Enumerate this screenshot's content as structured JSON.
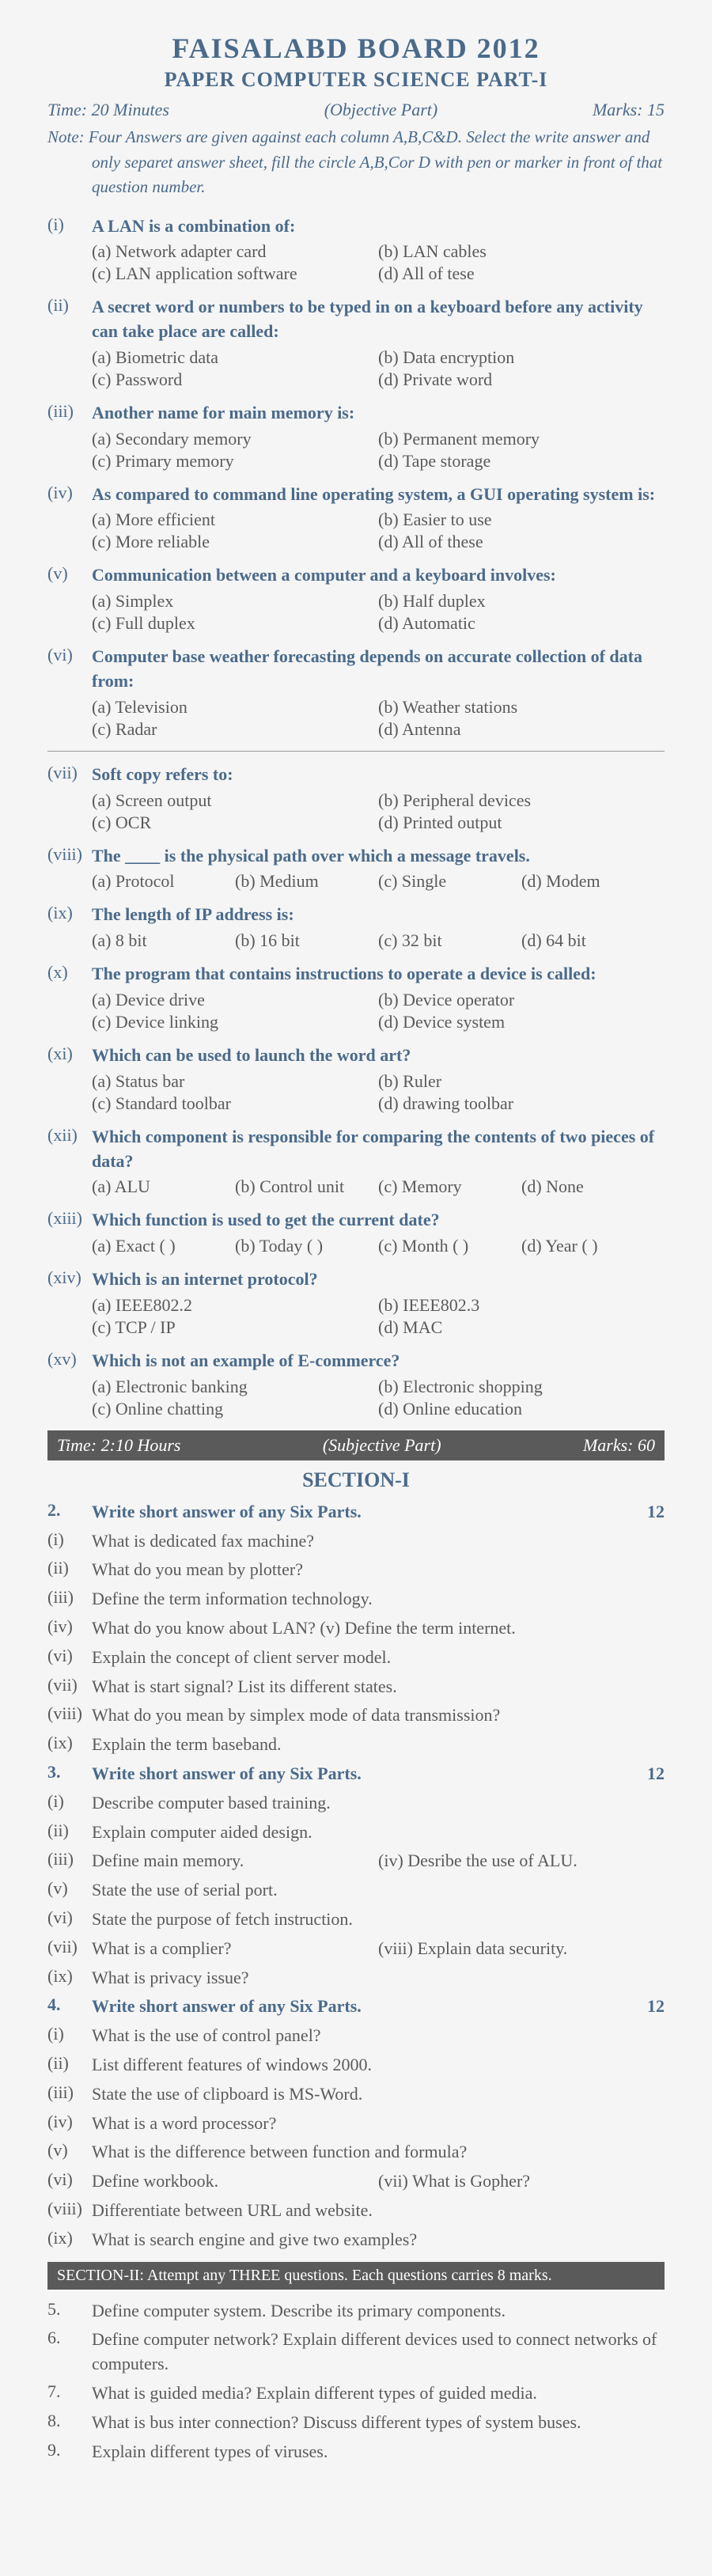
{
  "header": {
    "board": "FAISALABD BOARD 2012",
    "paper": "PAPER COMPUTER SCIENCE PART-I"
  },
  "objective": {
    "time": "Time: 20 Minutes",
    "part": "(Objective Part)",
    "marks": "Marks: 15",
    "note": "Note: Four Answers are given against each column A,B,C&D. Select the write answer and only separet answer sheet, fill the circle A,B,Cor D with pen or marker in front of that question number."
  },
  "mcq": [
    {
      "n": "(i)",
      "q": "A LAN is a combination of:",
      "o": [
        "(a)   Network adapter card",
        "(b)   LAN cables",
        "(c)   LAN application software",
        "(d)   All of tese"
      ],
      "cols": 2
    },
    {
      "n": "(ii)",
      "q": "A secret word or numbers to be typed in on a keyboard before any activity can take place are called:",
      "o": [
        "(a)   Biometric data",
        "(b)   Data encryption",
        "(c)   Password",
        "(d)   Private word"
      ],
      "cols": 2
    },
    {
      "n": "(iii)",
      "q": "Another name for main memory is:",
      "o": [
        "(a)   Secondary memory",
        "(b)   Permanent memory",
        "(c)   Primary memory",
        "(d)   Tape storage"
      ],
      "cols": 2
    },
    {
      "n": "(iv)",
      "q": "As compared to command line operating system, a GUI operating system is:",
      "o": [
        "(a)   More efficient",
        "(b)   Easier to use",
        "(c)   More reliable",
        "(d)   All of these"
      ],
      "cols": 2
    },
    {
      "n": "(v)",
      "q": "Communication between a computer and a keyboard involves:",
      "o": [
        "(a)   Simplex",
        "(b)   Half duplex",
        "(c)   Full duplex",
        "(d)   Automatic"
      ],
      "cols": 2
    },
    {
      "n": "(vi)",
      "q": "Computer base weather forecasting depends on accurate collection of data from:",
      "o": [
        "(a)   Television",
        "(b)   Weather stations",
        "(c)   Radar",
        "(d)   Antenna"
      ],
      "cols": 2,
      "hr": true
    },
    {
      "n": "(vii)",
      "q": "Soft copy refers to:",
      "o": [
        "(a)   Screen output",
        "(b)   Peripheral devices",
        "(c)   OCR",
        "(d)   Printed output"
      ],
      "cols": 2
    },
    {
      "n": "(viii)",
      "q": "The ____ is the physical path over which a message travels.",
      "o": [
        "(a)   Protocol",
        "(b)   Medium",
        "(c)   Single",
        "(d)   Modem"
      ],
      "cols": 4
    },
    {
      "n": "(ix)",
      "q": "The length of IP address is:",
      "o": [
        "(a)   8 bit",
        "(b)   16 bit",
        "(c)   32 bit",
        "(d)   64 bit"
      ],
      "cols": 4
    },
    {
      "n": "(x)",
      "q": "The program that contains instructions to operate a device is called:",
      "o": [
        "(a)   Device drive",
        "(b)   Device operator",
        "(c)   Device linking",
        "(d)   Device system"
      ],
      "cols": 2
    },
    {
      "n": "(xi)",
      "q": "Which can be used to launch the word art?",
      "o": [
        "(a)   Status bar",
        "(b)   Ruler",
        "(c)   Standard toolbar",
        "(d)   drawing toolbar"
      ],
      "cols": 2
    },
    {
      "n": "(xii)",
      "q": "Which component is responsible for comparing the contents of two pieces of data?",
      "o": [
        "(a)   ALU",
        "(b)   Control unit",
        "(c)   Memory",
        "(d)   None"
      ],
      "cols": 4
    },
    {
      "n": "(xiii)",
      "q": "Which function is used to get the current date?",
      "o": [
        "(a)   Exact ( )",
        "(b)   Today ( )",
        "(c)   Month ( )",
        "(d)   Year ( )"
      ],
      "cols": 4
    },
    {
      "n": "(xiv)",
      "q": "Which is an internet protocol?",
      "o": [
        "(a)   IEEE802.2",
        "(b)   IEEE802.3",
        "(c)   TCP / IP",
        "(d)   MAC"
      ],
      "cols": 2
    },
    {
      "n": "(xv)",
      "q": "Which is not an example of E-commerce?",
      "o": [
        "(a)   Electronic banking",
        "(b)   Electronic shopping",
        "(c)   Online chatting",
        "(d)   Online education"
      ],
      "cols": 2
    }
  ],
  "subjective": {
    "time": "Time: 2:10 Hours",
    "part": "(Subjective Part)",
    "marks": "Marks: 60",
    "section1_title": "SECTION-I"
  },
  "sq2": {
    "head_n": "2.",
    "head_t": "Write short answer of any Six Parts.",
    "head_m": "12",
    "items": [
      {
        "n": "(i)",
        "t": "What is dedicated fax machine?"
      },
      {
        "n": "(ii)",
        "t": "What do you mean by plotter?"
      },
      {
        "n": "(iii)",
        "t": "Define the term information technology."
      },
      {
        "n": "(iv)",
        "t": "What do you know about LAN?     (v)    Define the term internet."
      },
      {
        "n": "(vi)",
        "t": "Explain the concept of client server model."
      },
      {
        "n": "(vii)",
        "t": "What is start signal? List its different states."
      },
      {
        "n": "(viii)",
        "t": "What do you mean by simplex mode of data transmission?"
      },
      {
        "n": "(ix)",
        "t": "Explain the term baseband."
      }
    ]
  },
  "sq3": {
    "head_n": "3.",
    "head_t": "Write short answer of any Six Parts.",
    "head_m": "12",
    "items": [
      {
        "n": "(i)",
        "t": "Describe computer based training."
      },
      {
        "n": "(ii)",
        "t": "Explain computer aided design."
      },
      {
        "n": "(iii)",
        "t": "Define main memory.",
        "t2": "(iv)   Desribe the use of ALU."
      },
      {
        "n": "(v)",
        "t": "State the use of serial port."
      },
      {
        "n": "(vi)",
        "t": "State the purpose of fetch instruction."
      },
      {
        "n": "(vii)",
        "t": "What is a complier?",
        "t2": "(viii) Explain data security."
      },
      {
        "n": "(ix)",
        "t": "What is privacy issue?"
      }
    ]
  },
  "sq4": {
    "head_n": "4.",
    "head_t": "Write short answer of any Six Parts.",
    "head_m": "12",
    "items": [
      {
        "n": "(i)",
        "t": "What is the use of control panel?"
      },
      {
        "n": "(ii)",
        "t": "List different features of windows 2000."
      },
      {
        "n": "(iii)",
        "t": "State the use of clipboard is MS-Word."
      },
      {
        "n": "(iv)",
        "t": "What is a word processor?"
      },
      {
        "n": "(v)",
        "t": "What is the difference between function and formula?"
      },
      {
        "n": "(vi)",
        "t": "Define workbook.",
        "t2": "(vii)  What is Gopher?"
      },
      {
        "n": "(viii)",
        "t": "Differentiate between URL and website."
      },
      {
        "n": "(ix)",
        "t": "What is search engine and give two examples?"
      }
    ]
  },
  "section2_bar": "SECTION-II: Attempt any THREE questions. Each questions carries 8 marks.",
  "long": [
    {
      "n": "5.",
      "t": "Define computer system. Describe its primary components."
    },
    {
      "n": "6.",
      "t": "Define computer network? Explain different devices used to connect networks of computers."
    },
    {
      "n": "7.",
      "t": "What is guided media? Explain different types of guided media."
    },
    {
      "n": "8.",
      "t": "What is bus inter connection? Discuss different types of system buses."
    },
    {
      "n": "9.",
      "t": "Explain different types of viruses."
    }
  ]
}
